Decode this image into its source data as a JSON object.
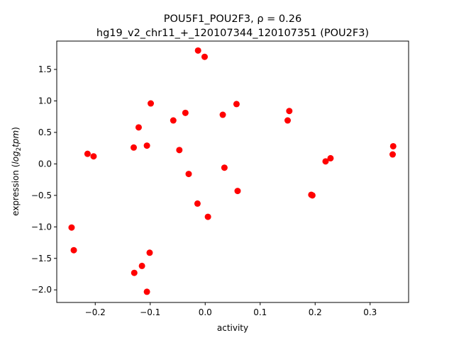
{
  "chart_data": {
    "type": "scatter",
    "title_line1": "POU5F1_POU2F3, ρ = 0.26",
    "title_line2": "hg19_v2_chr11_+_120107344_120107351 (POU2F3)",
    "xlabel": "activity",
    "ylabel_prefix": "expression (",
    "ylabel_math": "log",
    "ylabel_sub": "2",
    "ylabel_math2": "tpm",
    "ylabel_suffix": ")",
    "xlim": [
      -0.27,
      0.37
    ],
    "ylim": [
      -2.2,
      1.95
    ],
    "xticks": [
      -0.2,
      -0.1,
      0.0,
      0.1,
      0.2,
      0.3
    ],
    "xtick_labels": [
      "−0.2",
      "−0.1",
      "0.0",
      "0.1",
      "0.2",
      "0.3"
    ],
    "yticks": [
      -2.0,
      -1.5,
      -1.0,
      -0.5,
      0.0,
      0.5,
      1.0,
      1.5
    ],
    "ytick_labels": [
      "−2.0",
      "−1.5",
      "−1.0",
      "−0.5",
      "0.0",
      "0.5",
      "1.0",
      "1.5"
    ],
    "marker_color": "#ff0000",
    "grid": false,
    "points": [
      {
        "x": -0.013,
        "y": 1.8
      },
      {
        "x": -0.001,
        "y": 1.7
      },
      {
        "x": -0.099,
        "y": 0.96
      },
      {
        "x": 0.057,
        "y": 0.95
      },
      {
        "x": 0.153,
        "y": 0.84
      },
      {
        "x": -0.036,
        "y": 0.81
      },
      {
        "x": 0.032,
        "y": 0.78
      },
      {
        "x": -0.058,
        "y": 0.69
      },
      {
        "x": 0.15,
        "y": 0.69
      },
      {
        "x": -0.121,
        "y": 0.58
      },
      {
        "x": -0.106,
        "y": 0.29
      },
      {
        "x": 0.342,
        "y": 0.28
      },
      {
        "x": -0.13,
        "y": 0.26
      },
      {
        "x": -0.047,
        "y": 0.22
      },
      {
        "x": -0.214,
        "y": 0.16
      },
      {
        "x": 0.341,
        "y": 0.15
      },
      {
        "x": -0.203,
        "y": 0.12
      },
      {
        "x": 0.228,
        "y": 0.09
      },
      {
        "x": 0.219,
        "y": 0.04
      },
      {
        "x": 0.035,
        "y": -0.06
      },
      {
        "x": -0.03,
        "y": -0.16
      },
      {
        "x": 0.059,
        "y": -0.43
      },
      {
        "x": 0.193,
        "y": -0.49
      },
      {
        "x": 0.195,
        "y": -0.5
      },
      {
        "x": -0.014,
        "y": -0.63
      },
      {
        "x": 0.005,
        "y": -0.84
      },
      {
        "x": -0.243,
        "y": -1.01
      },
      {
        "x": -0.239,
        "y": -1.37
      },
      {
        "x": -0.101,
        "y": -1.41
      },
      {
        "x": -0.115,
        "y": -1.62
      },
      {
        "x": -0.129,
        "y": -1.73
      },
      {
        "x": -0.106,
        "y": -2.03
      }
    ]
  }
}
